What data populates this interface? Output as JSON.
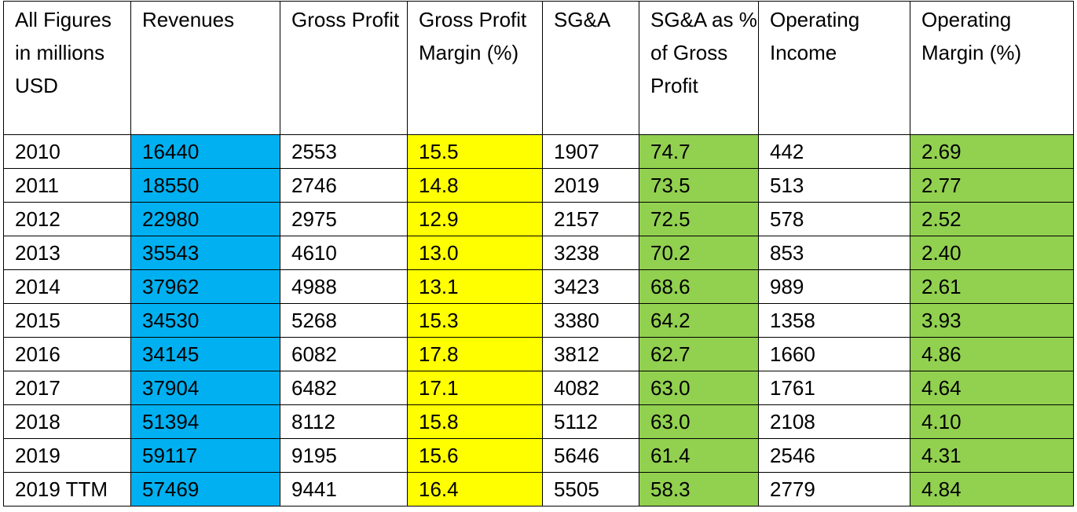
{
  "colors": {
    "revenues_fill": "#00B0F0",
    "gross_margin_fill": "#FFFF00",
    "sga_pct_fill": "#92D050",
    "op_margin_fill": "#92D050",
    "border": "#000000",
    "background": "#FFFFFF"
  },
  "table": {
    "headers": [
      "All Figures in millions USD",
      "Revenues",
      "Gross Profit",
      "Gross Profit Margin (%)",
      "SG&A",
      "SG&A as % of Gross Profit",
      "Operating Income",
      "Operating Margin (%)"
    ],
    "rows": [
      [
        "2010",
        "16440",
        "2553",
        "15.5",
        "1907",
        "74.7",
        "442",
        "2.69"
      ],
      [
        "2011",
        "18550",
        "2746",
        "14.8",
        "2019",
        "73.5",
        "513",
        "2.77"
      ],
      [
        "2012",
        "22980",
        "2975",
        "12.9",
        "2157",
        "72.5",
        "578",
        "2.52"
      ],
      [
        "2013",
        "35543",
        "4610",
        "13.0",
        "3238",
        "70.2",
        "853",
        "2.40"
      ],
      [
        "2014",
        "37962",
        "4988",
        "13.1",
        "3423",
        "68.6",
        "989",
        "2.61"
      ],
      [
        "2015",
        "34530",
        "5268",
        "15.3",
        "3380",
        "64.2",
        "1358",
        "3.93"
      ],
      [
        "2016",
        "34145",
        "6082",
        "17.8",
        "3812",
        "62.7",
        "1660",
        "4.86"
      ],
      [
        "2017",
        "37904",
        "6482",
        "17.1",
        "4082",
        "63.0",
        "1761",
        "4.64"
      ],
      [
        "2018",
        "51394",
        "8112",
        "15.8",
        "5112",
        "63.0",
        "2108",
        "4.10"
      ],
      [
        "2019",
        "59117",
        "9195",
        "15.6",
        "5646",
        "61.4",
        "2546",
        "4.31"
      ],
      [
        "2019 TTM",
        "57469",
        "9441",
        "16.4",
        "5505",
        "58.3",
        "2779",
        "4.84"
      ]
    ]
  }
}
